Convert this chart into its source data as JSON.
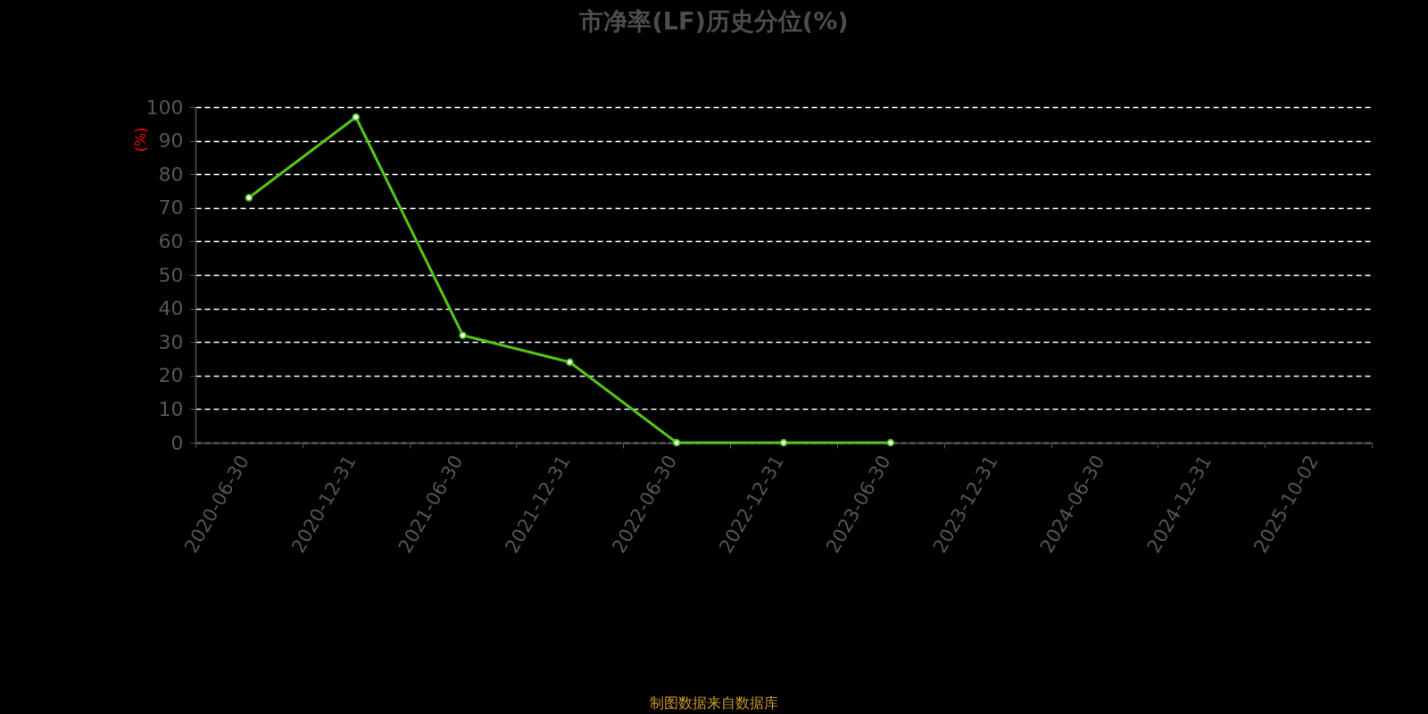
{
  "chart_data": {
    "type": "line",
    "title": "市净率(LF)历史分位(%)",
    "ylabel": "(%)",
    "annotations": [
      "制图数据来自数据库"
    ],
    "categories": [
      "2020-06-30",
      "2020-12-31",
      "2021-06-30",
      "2021-12-31",
      "2022-06-30",
      "2022-12-31",
      "2023-06-30",
      "2023-12-31",
      "2024-06-30",
      "2024-12-31",
      "2025-10-02"
    ],
    "series": [
      {
        "color": "#52c41a",
        "values": [
          73,
          97,
          32,
          24,
          0,
          0,
          0,
          null,
          null,
          null,
          null
        ]
      }
    ],
    "ylim": [
      0,
      100
    ],
    "yticks": [
      0,
      10,
      20,
      30,
      40,
      50,
      60,
      70,
      80,
      90,
      100
    ],
    "grid": "y",
    "legend": false,
    "marker": "circle",
    "line_style": "solid"
  }
}
